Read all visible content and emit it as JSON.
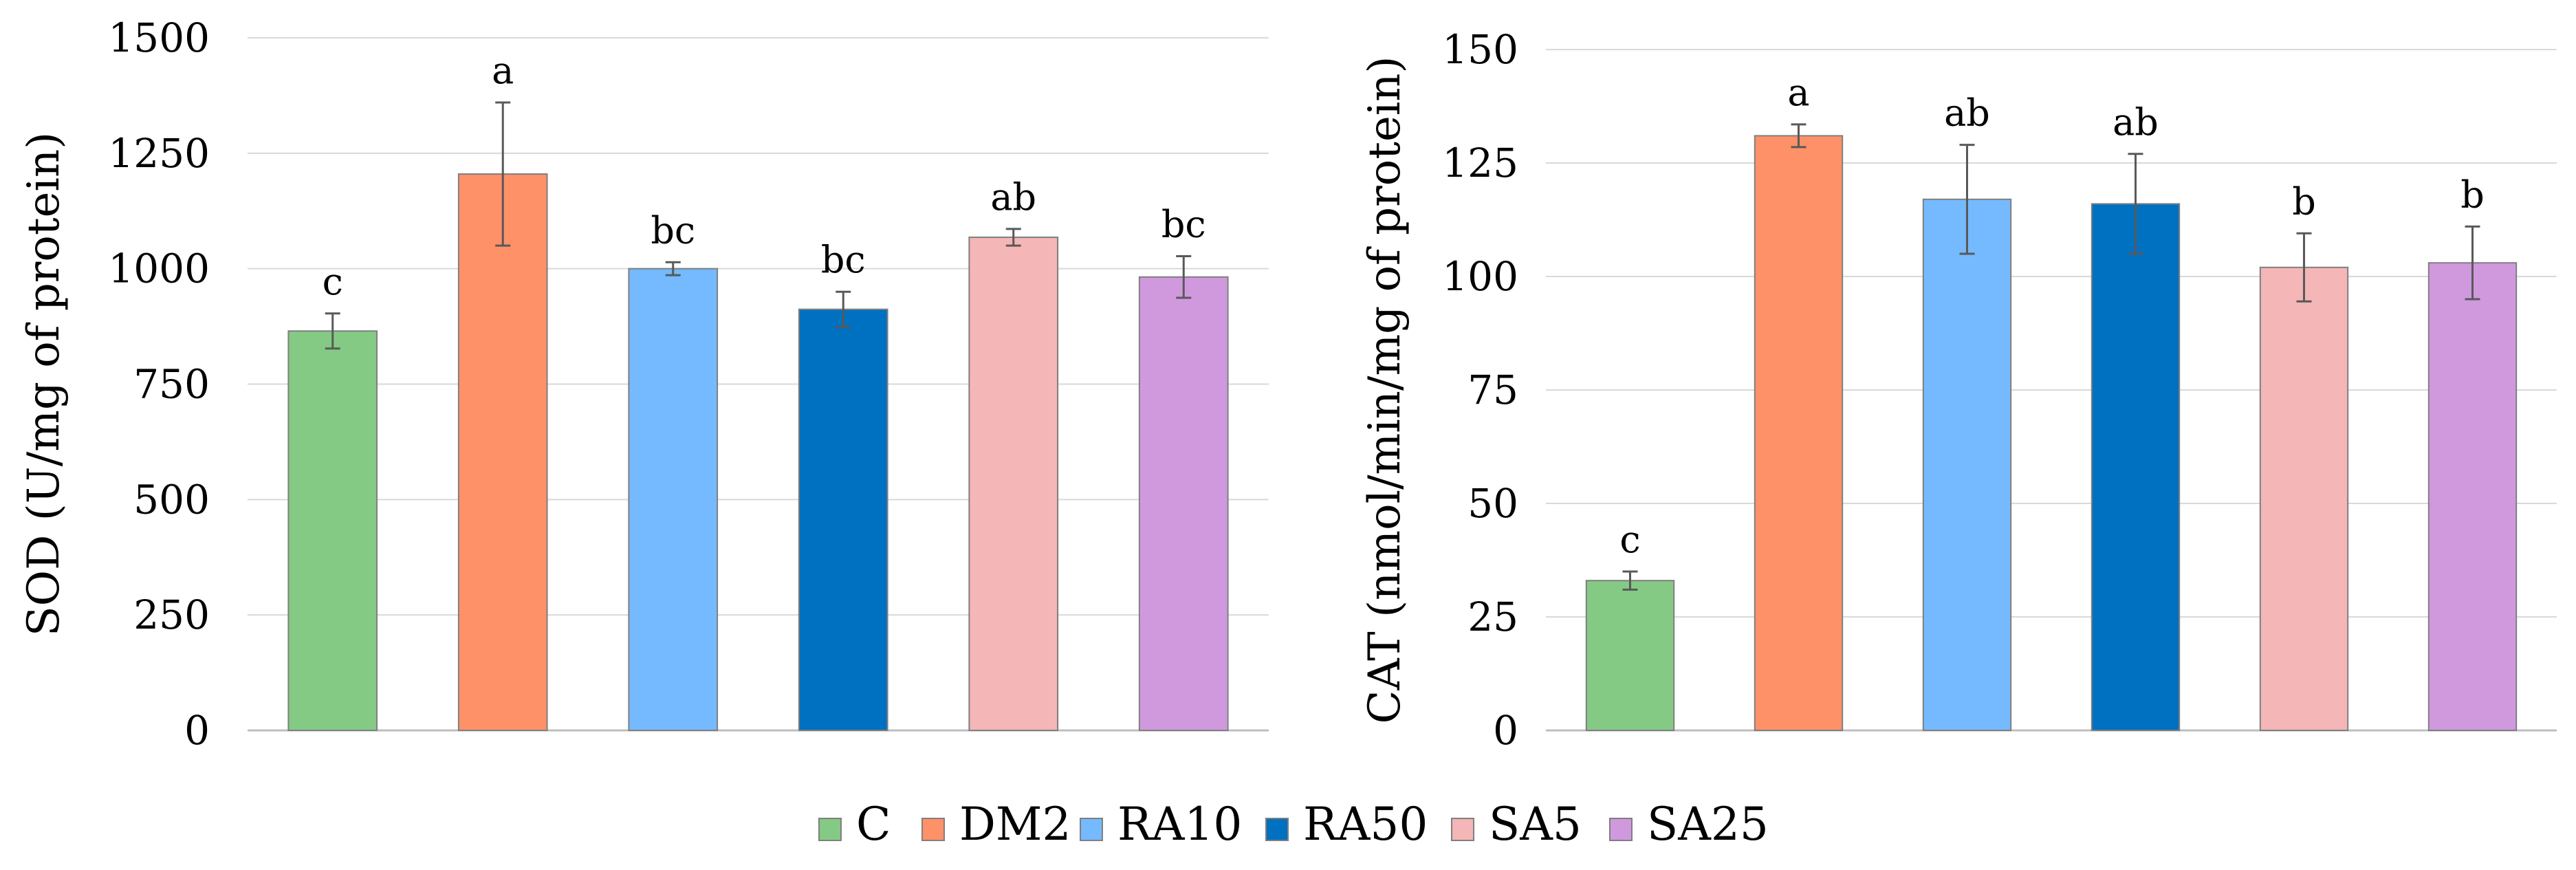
{
  "legend": {
    "entries": [
      {
        "label": "C",
        "color": "#84CA84"
      },
      {
        "label": "DM2",
        "color": "#FF9169"
      },
      {
        "label": "RA10",
        "color": "#75BAFE"
      },
      {
        "label": "RA50",
        "color": "#0070C0"
      },
      {
        "label": "SA5",
        "color": "#F4B6B6"
      },
      {
        "label": "SA25",
        "color": "#D099DE"
      }
    ]
  },
  "chart_data": [
    {
      "type": "bar",
      "title": "",
      "xlabel": "",
      "ylabel": "SOD (U/mg of protein)",
      "ylim": [
        0,
        1500
      ],
      "yticks": [
        "0",
        "250",
        "500",
        "750",
        "1000",
        "1250",
        "1500"
      ],
      "categories": [
        "C",
        "DM2",
        "RA10",
        "RA50",
        "SA5",
        "SA25"
      ],
      "values": [
        865,
        1205,
        1000,
        912,
        1068,
        982
      ],
      "errors": [
        38,
        155,
        14,
        38,
        18,
        45
      ],
      "significance": [
        "c",
        "a",
        "bc",
        "bc",
        "ab",
        "bc"
      ],
      "grid": "horizontal"
    },
    {
      "type": "bar",
      "title": "",
      "xlabel": "",
      "ylabel": "CAT (nmol/min/mg of protein)",
      "ylim": [
        0,
        150
      ],
      "yticks": [
        "0",
        "25",
        "50",
        "75",
        "100",
        "125",
        "150"
      ],
      "categories": [
        "C",
        "DM2",
        "RA10",
        "RA50",
        "SA5",
        "SA25"
      ],
      "values": [
        33,
        131,
        117,
        116,
        102,
        103
      ],
      "errors": [
        2,
        2.5,
        12,
        11,
        7.5,
        8
      ],
      "significance": [
        "c",
        "a",
        "ab",
        "ab",
        "b",
        "b"
      ],
      "grid": "horizontal"
    }
  ]
}
